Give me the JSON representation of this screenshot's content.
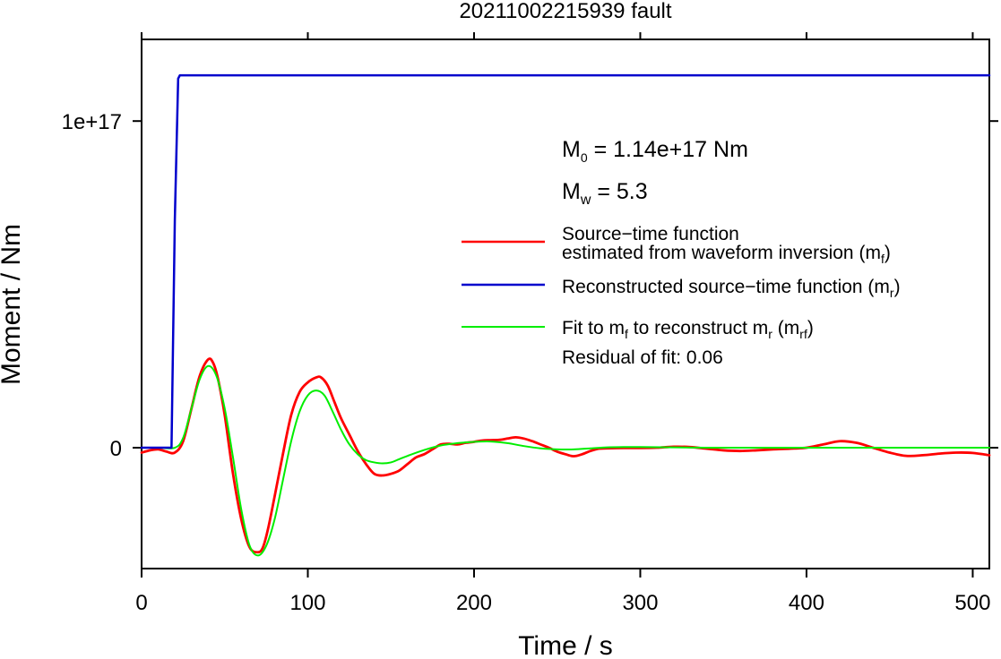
{
  "chart_data": {
    "type": "line",
    "title": "20211002215939 fault",
    "xlabel": "Time / s",
    "ylabel": "Moment / Nm",
    "xlim": [
      0,
      510
    ],
    "ylim": [
      -3.7e+16,
      1.25e+17
    ],
    "x_ticks": [
      0,
      100,
      200,
      300,
      400,
      500
    ],
    "x_tick_labels": [
      "0",
      "100",
      "200",
      "300",
      "400",
      "500"
    ],
    "y_ticks": [
      0,
      1e+17
    ],
    "y_tick_labels": [
      "0",
      "1e+17"
    ],
    "grid": false,
    "annotations": {
      "m0": {
        "main": "M",
        "sub": "0",
        "rest": " = 1.14e+17 Nm"
      },
      "mw": {
        "main": "M",
        "sub": "w",
        "rest": " = 5.3"
      },
      "residual": "Residual of fit: 0.06"
    },
    "legend_position": "right",
    "series": [
      {
        "key": "mf",
        "color": "#ff0000",
        "legend": {
          "line1": "Source−time function",
          "line2_prefix": "estimated from waveform inversion (m",
          "line2_sub": "f",
          "line2_suffix": ")"
        },
        "x": [
          0,
          5,
          10,
          15,
          20,
          25,
          30,
          35,
          40,
          43,
          46,
          50,
          55,
          60,
          65,
          70,
          73,
          76,
          80,
          85,
          90,
          95,
          100,
          105,
          108,
          112,
          116,
          120,
          125,
          130,
          135,
          140,
          145,
          150,
          155,
          160,
          165,
          170,
          175,
          180,
          185,
          190,
          195,
          200,
          205,
          210,
          215,
          220,
          225,
          230,
          235,
          240,
          245,
          250,
          255,
          260,
          265,
          270,
          275,
          280,
          290,
          300,
          310,
          320,
          330,
          340,
          350,
          360,
          370,
          380,
          390,
          400,
          410,
          420,
          430,
          440,
          450,
          460,
          470,
          480,
          490,
          500,
          510
        ],
        "y": [
          -1500000000000000.0,
          -800000000000000.0,
          -500000000000000.0,
          -1200000000000000.0,
          -1500000000000000.0,
          2000000000000000.0,
          1.2e+16,
          2.2e+16,
          2.7e+16,
          2.6e+16,
          2.1e+16,
          1e+16,
          -8000000000000000.0,
          -2.2e+16,
          -3.05e+16,
          -3.2e+16,
          -3.05e+16,
          -2.5e+16,
          -1.5e+16,
          -2000000000000000.0,
          1e+16,
          1.7e+16,
          2e+16,
          2.15e+16,
          2.15e+16,
          1.9e+16,
          1.4e+16,
          9000000000000000.0,
          4000000000000000.0,
          -1000000000000000.0,
          -5000000000000000.0,
          -8000000000000000.0,
          -8500000000000000.0,
          -8000000000000000.0,
          -7000000000000000.0,
          -5000000000000000.0,
          -3000000000000000.0,
          -2000000000000000.0,
          -500000000000000.0,
          1000000000000000.0,
          1200000000000000.0,
          1000000000000000.0,
          1500000000000000.0,
          1800000000000000.0,
          2200000000000000.0,
          2300000000000000.0,
          2400000000000000.0,
          2800000000000000.0,
          3200000000000000.0,
          2800000000000000.0,
          2000000000000000.0,
          1000000000000000.0,
          0,
          -1200000000000000.0,
          -2000000000000000.0,
          -2600000000000000.0,
          -2000000000000000.0,
          -1000000000000000.0,
          -300000000000000.0,
          -200000000000000.0,
          -100000000000000.0,
          -100000000000000.0,
          0,
          300000000000000.0,
          200000000000000.0,
          -300000000000000.0,
          -800000000000000.0,
          -1000000000000000.0,
          -800000000000000.0,
          -500000000000000.0,
          -300000000000000.0,
          0,
          1000000000000000.0,
          2000000000000000.0,
          1500000000000000.0,
          0,
          -1500000000000000.0,
          -2500000000000000.0,
          -2300000000000000.0,
          -1800000000000000.0,
          -1500000000000000.0,
          -1600000000000000.0,
          -2300000000000000.0
        ]
      },
      {
        "key": "mr",
        "color": "#0000cc",
        "legend": {
          "line1_prefix": "Reconstructed source−time function (m",
          "line1_sub": "r",
          "line1_suffix": ")"
        },
        "x": [
          0,
          18,
          20,
          22,
          23,
          510
        ],
        "y": [
          0,
          0,
          7e+16,
          1.13e+17,
          1.14e+17,
          1.14e+17
        ]
      },
      {
        "key": "mrf",
        "color": "#00ee00",
        "legend": {
          "line1_prefix": "Fit to m",
          "line1_sub1": "f",
          "line1_mid": " to reconstruct m",
          "line1_sub2": "r",
          "line1_mid2": " (m",
          "line1_sub3": "rf",
          "line1_suffix": ")"
        },
        "x": [
          0,
          10,
          20,
          25,
          30,
          35,
          40,
          45,
          50,
          55,
          60,
          65,
          70,
          75,
          80,
          85,
          90,
          95,
          100,
          105,
          110,
          115,
          120,
          125,
          130,
          135,
          140,
          145,
          150,
          155,
          160,
          170,
          180,
          190,
          200,
          210,
          220,
          230,
          240,
          250,
          260,
          270,
          280,
          290,
          300,
          320,
          340,
          360,
          380,
          400,
          420,
          440,
          460,
          480,
          500,
          510
        ],
        "y": [
          0,
          0,
          0,
          3000000000000000.0,
          1.2e+16,
          2.1e+16,
          2.5e+16,
          2.2e+16,
          1.2e+16,
          -3000000000000000.0,
          -1.9e+16,
          -3e+16,
          -3.3e+16,
          -3e+16,
          -2.2e+16,
          -1e+16,
          2000000000000000.0,
          1.1e+16,
          1.6e+16,
          1.75e+16,
          1.6e+16,
          1.1e+16,
          5500000000000000.0,
          1000000000000000.0,
          -2000000000000000.0,
          -3800000000000000.0,
          -4500000000000000.0,
          -4800000000000000.0,
          -4500000000000000.0,
          -3500000000000000.0,
          -2500000000000000.0,
          -700000000000000.0,
          700000000000000.0,
          1400000000000000.0,
          1800000000000000.0,
          1900000000000000.0,
          1400000000000000.0,
          500000000000000.0,
          -200000000000000.0,
          -500000000000000.0,
          -500000000000000.0,
          -200000000000000.0,
          100000000000000.0,
          200000000000000.0,
          200000000000000.0,
          100000000000000.0,
          0,
          0,
          0,
          0,
          0,
          0,
          0,
          0,
          0,
          0
        ]
      }
    ]
  }
}
